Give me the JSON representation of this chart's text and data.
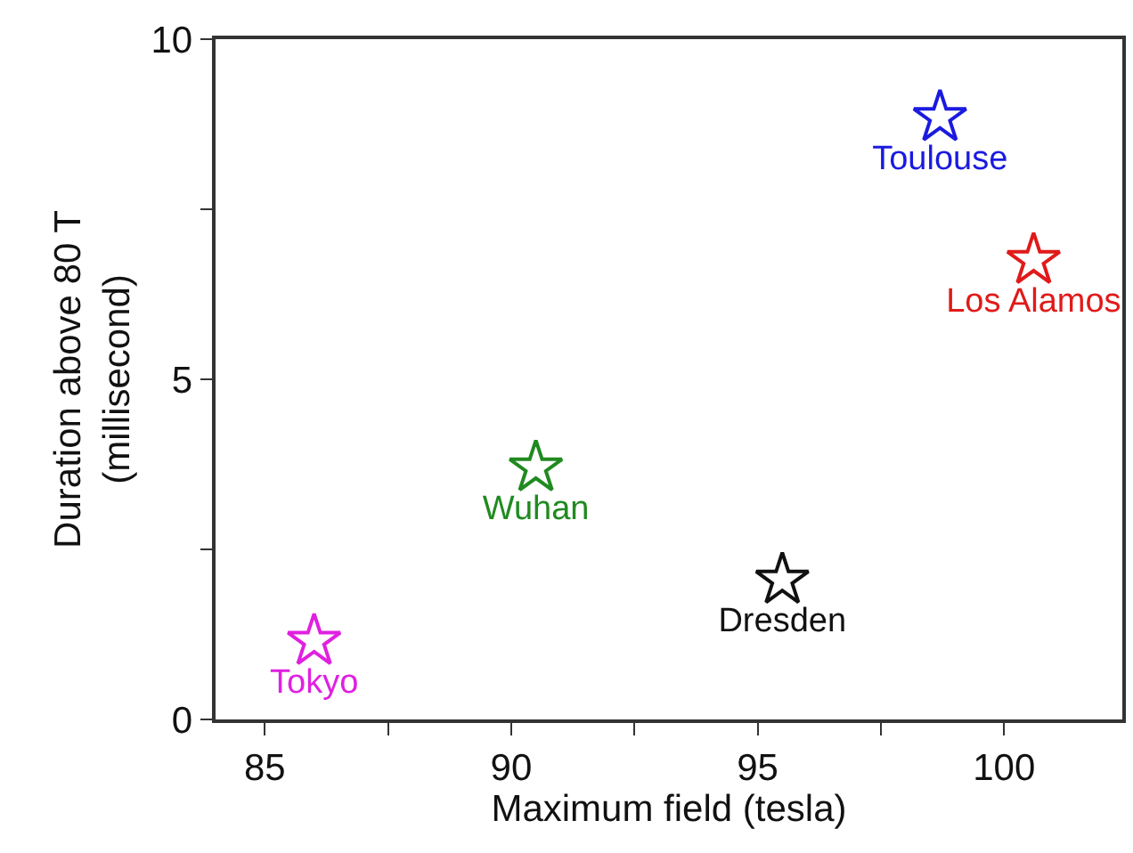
{
  "chart_data": {
    "type": "scatter",
    "xlabel": "Maximum field (tesla)",
    "ylabel": "Duration above 80 T\n(millisecond)",
    "xlim": [
      84,
      102.4
    ],
    "ylim": [
      0,
      10
    ],
    "xticks": [
      85,
      {
        "value": 87.5,
        "label": null
      },
      90,
      {
        "value": 92.5,
        "label": null
      },
      95,
      {
        "value": 97.5,
        "label": null
      },
      100
    ],
    "yticks": [
      0,
      {
        "value": 2.5,
        "label": null
      },
      5,
      {
        "value": 7.5,
        "label": null
      },
      10
    ],
    "marker": "star",
    "series": [
      {
        "name": "Tokyo",
        "color": "#e020e0",
        "x": [
          86.0
        ],
        "values": [
          1.15
        ]
      },
      {
        "name": "Wuhan",
        "color": "#208a20",
        "x": [
          90.5
        ],
        "values": [
          3.7
        ]
      },
      {
        "name": "Dresden",
        "color": "#111111",
        "x": [
          95.5
        ],
        "values": [
          2.05
        ]
      },
      {
        "name": "Toulouse",
        "color": "#1a1ae0",
        "x": [
          98.7
        ],
        "values": [
          8.85
        ]
      },
      {
        "name": "Los Alamos",
        "color": "#e01a1a",
        "x": [
          100.6
        ],
        "values": [
          6.75
        ]
      }
    ]
  }
}
